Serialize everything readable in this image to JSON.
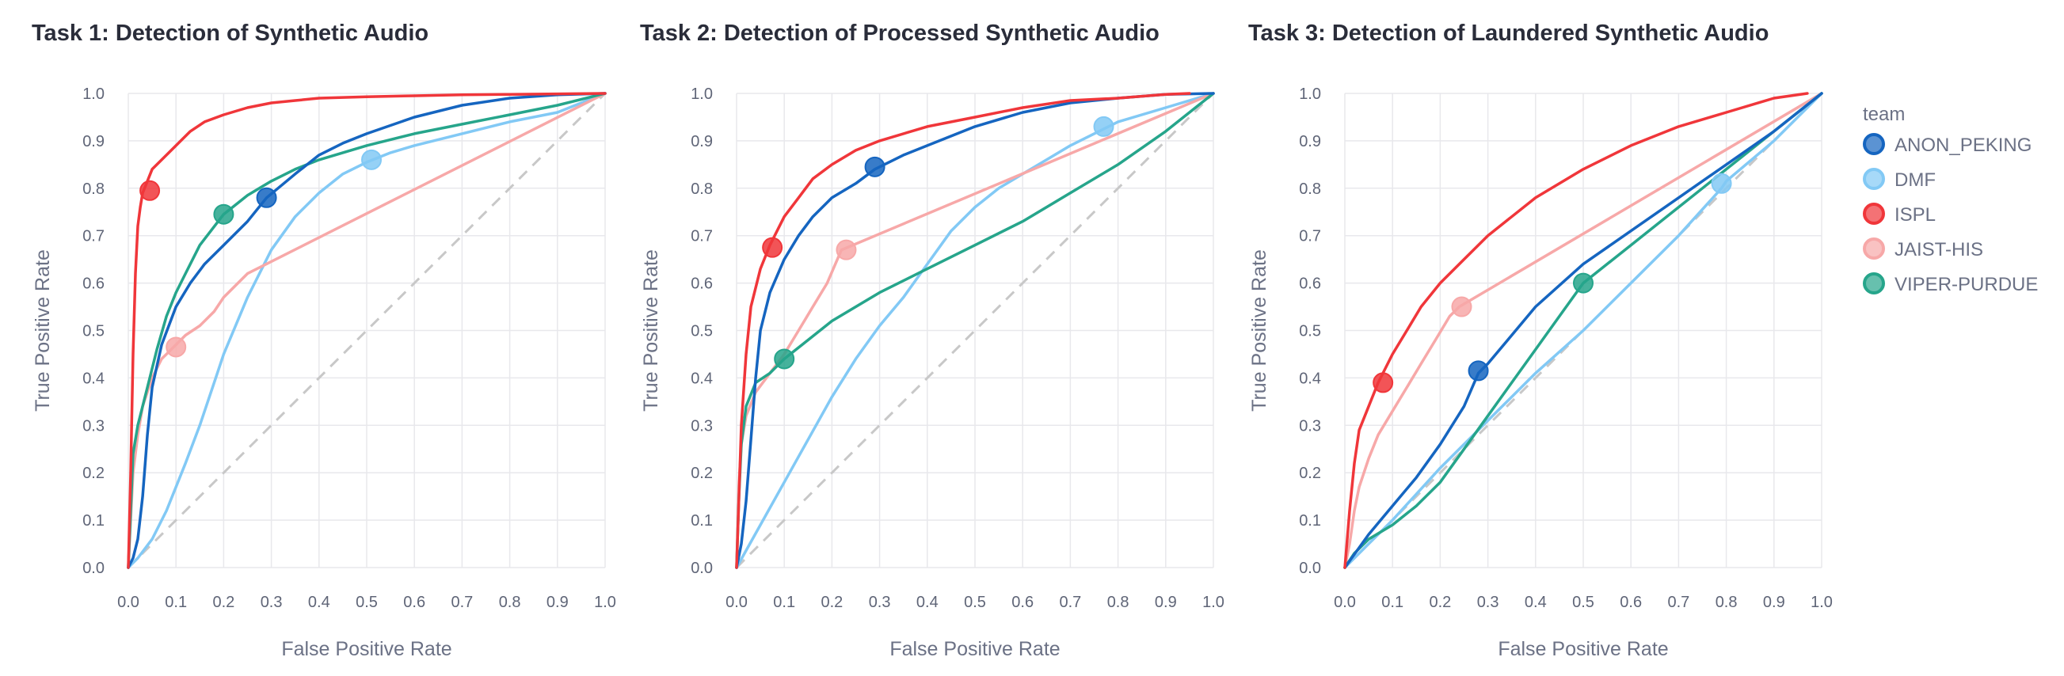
{
  "chart_data": [
    {
      "type": "line",
      "title": "Task 1: Detection of Synthetic Audio",
      "xlabel": "False Positive Rate",
      "ylabel": "True Positive Rate",
      "xlim": [
        0,
        1
      ],
      "ylim": [
        0,
        1
      ],
      "xticks": [
        "0.0",
        "0.1",
        "0.2",
        "0.3",
        "0.4",
        "0.5",
        "0.6",
        "0.7",
        "0.8",
        "0.9",
        "1.0"
      ],
      "yticks": [
        "0.0",
        "0.1",
        "0.2",
        "0.3",
        "0.4",
        "0.5",
        "0.6",
        "0.7",
        "0.8",
        "0.9",
        "1.0"
      ],
      "grid": true,
      "series": [
        {
          "name": "DMF",
          "x": [
            0,
            0.02,
            0.05,
            0.08,
            0.1,
            0.12,
            0.15,
            0.18,
            0.2,
            0.25,
            0.3,
            0.35,
            0.4,
            0.45,
            0.5,
            0.55,
            0.6,
            0.7,
            0.8,
            0.9,
            1
          ],
          "y": [
            0,
            0.02,
            0.06,
            0.12,
            0.17,
            0.22,
            0.3,
            0.39,
            0.45,
            0.57,
            0.67,
            0.74,
            0.79,
            0.83,
            0.855,
            0.875,
            0.89,
            0.915,
            0.94,
            0.96,
            1
          ],
          "point": [
            0.51,
            0.86
          ]
        },
        {
          "name": "JAIST-HIS",
          "x": [
            0,
            0.01,
            0.02,
            0.03,
            0.05,
            0.07,
            0.09,
            0.12,
            0.15,
            0.18,
            0.2,
            0.25,
            1
          ],
          "y": [
            0,
            0.2,
            0.28,
            0.34,
            0.4,
            0.44,
            0.46,
            0.49,
            0.51,
            0.54,
            0.57,
            0.62,
            1
          ],
          "point": [
            0.1,
            0.465
          ]
        },
        {
          "name": "VIPER-PURDUE",
          "x": [
            0,
            0.01,
            0.02,
            0.04,
            0.06,
            0.08,
            0.1,
            0.12,
            0.15,
            0.2,
            0.25,
            0.3,
            0.35,
            0.4,
            0.5,
            0.6,
            0.7,
            0.8,
            0.9,
            1
          ],
          "y": [
            0,
            0.24,
            0.3,
            0.38,
            0.46,
            0.53,
            0.58,
            0.62,
            0.68,
            0.745,
            0.785,
            0.815,
            0.84,
            0.86,
            0.89,
            0.915,
            0.935,
            0.955,
            0.975,
            1
          ],
          "point": [
            0.2,
            0.745
          ]
        },
        {
          "name": "ANON_PEKING",
          "x": [
            0,
            0.01,
            0.02,
            0.03,
            0.04,
            0.05,
            0.07,
            0.1,
            0.13,
            0.16,
            0.2,
            0.25,
            0.29,
            0.35,
            0.4,
            0.45,
            0.5,
            0.6,
            0.7,
            0.8,
            0.9,
            1
          ],
          "y": [
            0,
            0.02,
            0.06,
            0.15,
            0.28,
            0.38,
            0.47,
            0.55,
            0.6,
            0.64,
            0.68,
            0.73,
            0.78,
            0.83,
            0.87,
            0.895,
            0.915,
            0.95,
            0.975,
            0.99,
            0.997,
            1
          ],
          "point": [
            0.29,
            0.78
          ]
        },
        {
          "name": "ISPL",
          "x": [
            0,
            0.005,
            0.01,
            0.015,
            0.02,
            0.025,
            0.03,
            0.05,
            0.07,
            0.1,
            0.13,
            0.16,
            0.2,
            0.25,
            0.3,
            0.35,
            0.4,
            0.5,
            0.6,
            0.7,
            0.8,
            0.9,
            1
          ],
          "y": [
            0,
            0.2,
            0.45,
            0.62,
            0.72,
            0.76,
            0.79,
            0.84,
            0.86,
            0.89,
            0.92,
            0.94,
            0.955,
            0.97,
            0.98,
            0.985,
            0.99,
            0.993,
            0.995,
            0.997,
            0.998,
            0.999,
            1
          ],
          "point": [
            0.045,
            0.795
          ]
        }
      ],
      "diagonal": true
    },
    {
      "type": "line",
      "title": "Task 2: Detection of Processed Synthetic Audio",
      "xlabel": "False Positive Rate",
      "ylabel": "True Positive Rate",
      "xlim": [
        0,
        1
      ],
      "ylim": [
        0,
        1
      ],
      "xticks": [
        "0.0",
        "0.1",
        "0.2",
        "0.3",
        "0.4",
        "0.5",
        "0.6",
        "0.7",
        "0.8",
        "0.9",
        "1.0"
      ],
      "yticks": [
        "0.0",
        "0.1",
        "0.2",
        "0.3",
        "0.4",
        "0.5",
        "0.6",
        "0.7",
        "0.8",
        "0.9",
        "1.0"
      ],
      "grid": true,
      "series": [
        {
          "name": "DMF",
          "x": [
            0,
            0.05,
            0.1,
            0.15,
            0.2,
            0.25,
            0.3,
            0.35,
            0.4,
            0.45,
            0.5,
            0.55,
            0.6,
            0.65,
            0.7,
            0.75,
            0.78,
            0.8,
            0.9,
            1
          ],
          "y": [
            0,
            0.09,
            0.18,
            0.27,
            0.36,
            0.44,
            0.51,
            0.57,
            0.64,
            0.71,
            0.76,
            0.8,
            0.83,
            0.86,
            0.89,
            0.915,
            0.93,
            0.94,
            0.97,
            1
          ],
          "point": [
            0.77,
            0.93
          ]
        },
        {
          "name": "JAIST-HIS",
          "x": [
            0,
            0.005,
            0.01,
            0.02,
            0.04,
            0.07,
            0.1,
            0.13,
            0.16,
            0.19,
            0.22,
            1
          ],
          "y": [
            0,
            0.18,
            0.26,
            0.32,
            0.37,
            0.41,
            0.45,
            0.5,
            0.55,
            0.6,
            0.67,
            1
          ],
          "point": [
            0.23,
            0.67
          ]
        },
        {
          "name": "VIPER-PURDUE",
          "x": [
            0,
            0.005,
            0.01,
            0.02,
            0.04,
            0.07,
            0.1,
            0.15,
            0.2,
            0.3,
            0.4,
            0.5,
            0.6,
            0.7,
            0.8,
            0.9,
            1
          ],
          "y": [
            0,
            0.15,
            0.26,
            0.34,
            0.39,
            0.41,
            0.44,
            0.48,
            0.52,
            0.58,
            0.63,
            0.68,
            0.73,
            0.79,
            0.85,
            0.92,
            1
          ],
          "point": [
            0.1,
            0.44
          ]
        },
        {
          "name": "ANON_PEKING",
          "x": [
            0,
            0.01,
            0.02,
            0.03,
            0.04,
            0.05,
            0.07,
            0.1,
            0.13,
            0.16,
            0.2,
            0.25,
            0.29,
            0.35,
            0.4,
            0.5,
            0.6,
            0.7,
            0.8,
            0.9,
            1
          ],
          "y": [
            0,
            0.05,
            0.14,
            0.27,
            0.4,
            0.5,
            0.58,
            0.65,
            0.7,
            0.74,
            0.78,
            0.81,
            0.84,
            0.87,
            0.89,
            0.93,
            0.96,
            0.98,
            0.99,
            0.998,
            1
          ],
          "point": [
            0.29,
            0.845
          ]
        },
        {
          "name": "ISPL",
          "x": [
            0,
            0.005,
            0.01,
            0.02,
            0.03,
            0.05,
            0.07,
            0.1,
            0.13,
            0.16,
            0.2,
            0.25,
            0.3,
            0.4,
            0.5,
            0.6,
            0.7,
            0.8,
            0.9,
            0.95
          ],
          "y": [
            0,
            0.15,
            0.3,
            0.45,
            0.55,
            0.63,
            0.68,
            0.74,
            0.78,
            0.82,
            0.85,
            0.88,
            0.9,
            0.93,
            0.95,
            0.97,
            0.985,
            0.99,
            0.998,
            1
          ],
          "point": [
            0.075,
            0.675
          ]
        }
      ],
      "diagonal": true
    },
    {
      "type": "line",
      "title": "Task 3: Detection of Laundered Synthetic Audio",
      "xlabel": "False Positive Rate",
      "ylabel": "True Positive Rate",
      "xlim": [
        0,
        1
      ],
      "ylim": [
        0,
        1
      ],
      "xticks": [
        "0.0",
        "0.1",
        "0.2",
        "0.3",
        "0.4",
        "0.5",
        "0.6",
        "0.7",
        "0.8",
        "0.9",
        "1.0"
      ],
      "yticks": [
        "0.0",
        "0.1",
        "0.2",
        "0.3",
        "0.4",
        "0.5",
        "0.6",
        "0.7",
        "0.8",
        "0.9",
        "1.0"
      ],
      "grid": true,
      "series": [
        {
          "name": "DMF",
          "x": [
            0,
            0.05,
            0.1,
            0.2,
            0.3,
            0.4,
            0.5,
            0.6,
            0.7,
            0.79,
            0.8,
            0.9,
            1
          ],
          "y": [
            0,
            0.05,
            0.1,
            0.21,
            0.31,
            0.41,
            0.5,
            0.6,
            0.7,
            0.8,
            0.815,
            0.9,
            1
          ],
          "point": [
            0.79,
            0.81
          ]
        },
        {
          "name": "JAIST-HIS",
          "x": [
            0,
            0.01,
            0.02,
            0.03,
            0.05,
            0.07,
            0.1,
            0.13,
            0.16,
            0.19,
            0.22,
            0.24,
            1
          ],
          "y": [
            0,
            0.05,
            0.12,
            0.17,
            0.23,
            0.28,
            0.33,
            0.38,
            0.43,
            0.48,
            0.53,
            0.55,
            1
          ],
          "point": [
            0.245,
            0.55
          ]
        },
        {
          "name": "VIPER-PURDUE",
          "x": [
            0,
            0.02,
            0.05,
            0.1,
            0.15,
            0.2,
            0.25,
            0.3,
            0.35,
            0.4,
            0.45,
            0.5,
            0.6,
            0.7,
            0.8,
            0.9,
            1
          ],
          "y": [
            0,
            0.03,
            0.06,
            0.09,
            0.13,
            0.18,
            0.25,
            0.32,
            0.39,
            0.46,
            0.53,
            0.6,
            0.68,
            0.76,
            0.84,
            0.92,
            1
          ],
          "point": [
            0.5,
            0.6
          ]
        },
        {
          "name": "ANON_PEKING",
          "x": [
            0,
            0.05,
            0.1,
            0.15,
            0.2,
            0.25,
            0.28,
            0.3,
            0.35,
            0.4,
            0.5,
            0.6,
            0.7,
            0.8,
            0.9,
            1
          ],
          "y": [
            0,
            0.07,
            0.13,
            0.19,
            0.26,
            0.34,
            0.41,
            0.43,
            0.49,
            0.55,
            0.64,
            0.71,
            0.78,
            0.85,
            0.92,
            1
          ],
          "point": [
            0.28,
            0.415
          ]
        },
        {
          "name": "ISPL",
          "x": [
            0,
            0.01,
            0.02,
            0.03,
            0.05,
            0.07,
            0.1,
            0.13,
            0.16,
            0.2,
            0.25,
            0.3,
            0.4,
            0.5,
            0.6,
            0.7,
            0.8,
            0.9,
            0.97
          ],
          "y": [
            0,
            0.12,
            0.22,
            0.29,
            0.34,
            0.39,
            0.45,
            0.5,
            0.55,
            0.6,
            0.65,
            0.7,
            0.78,
            0.84,
            0.89,
            0.93,
            0.96,
            0.99,
            1
          ],
          "point": [
            0.08,
            0.39
          ]
        }
      ],
      "diagonal": true
    }
  ],
  "legend": {
    "title": "team",
    "entries": [
      {
        "name": "ANON_PEKING",
        "color": "#1565c0"
      },
      {
        "name": "DMF",
        "color": "#82c9f5"
      },
      {
        "name": "ISPL",
        "color": "#f0363a"
      },
      {
        "name": "JAIST-HIS",
        "color": "#f7a8a8"
      },
      {
        "name": "VIPER-PURDUE",
        "color": "#26a58b"
      }
    ]
  },
  "colors": {
    "ANON_PEKING": "#1565c0",
    "DMF": "#82c9f5",
    "ISPL": "#f0363a",
    "JAIST-HIS": "#f7a8a8",
    "VIPER-PURDUE": "#26a58b",
    "diagonal": "#c8c8c8",
    "grid": "#e8e8ec"
  }
}
